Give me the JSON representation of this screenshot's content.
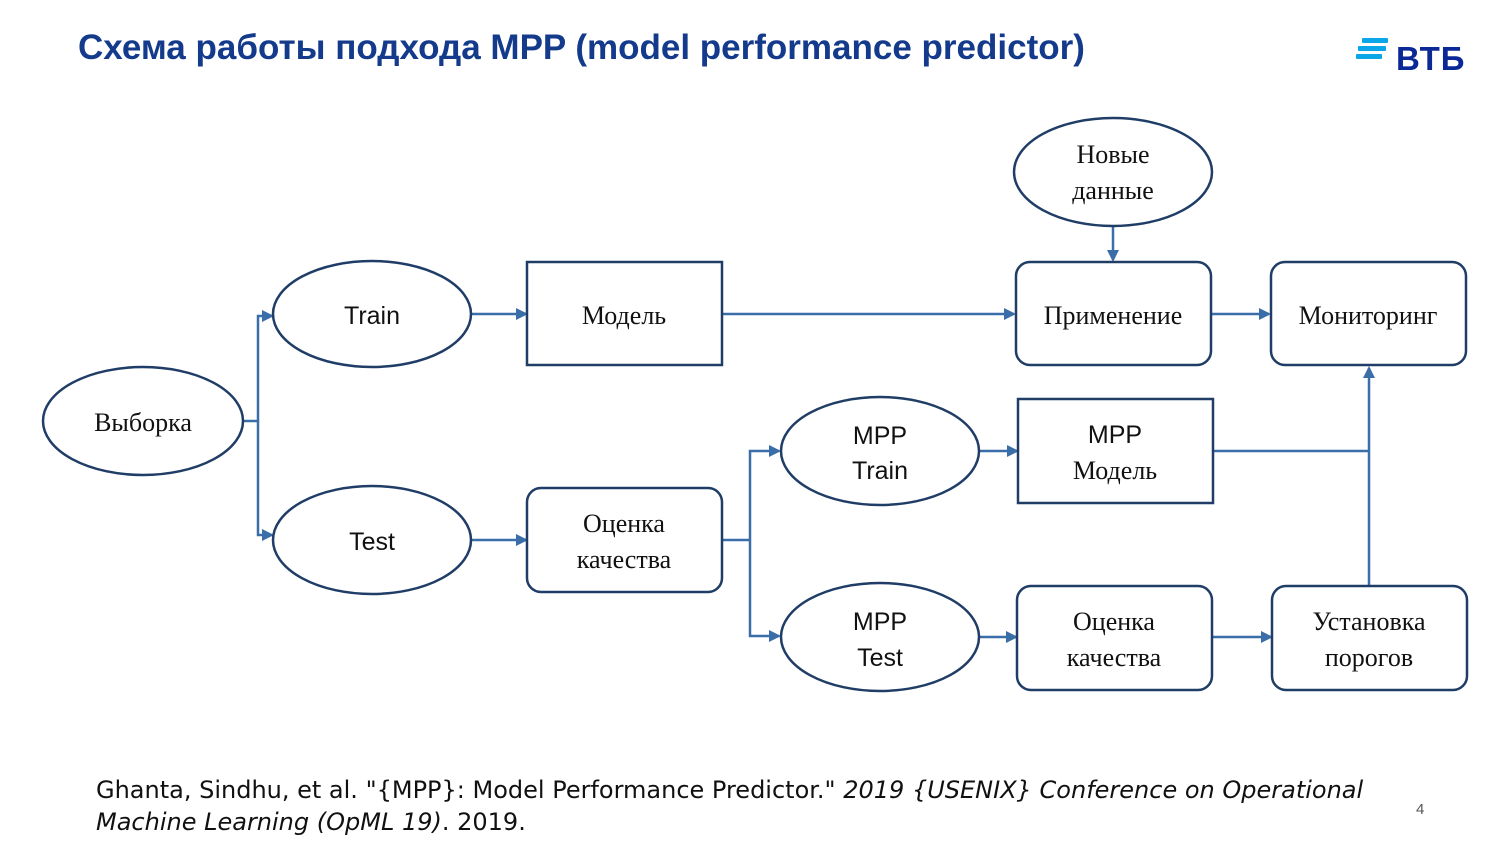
{
  "slide": {
    "title": "Схема работы подхода MPP (model performance predictor)",
    "logo_text": "ВТБ",
    "page_number": "4"
  },
  "colors": {
    "title": "#143a8c",
    "edges": "#3a6ea8",
    "node_stroke": "#1f3d66",
    "logo_text": "#0a2896",
    "logo_bars": "#0aa6e8"
  },
  "nodes": {
    "new_data": {
      "line1": "Новые",
      "line2": "данные"
    },
    "train": {
      "label": "Train"
    },
    "model": {
      "label": "Модель"
    },
    "apply": {
      "label": "Применение"
    },
    "monitoring": {
      "label": "Мониторинг"
    },
    "sample": {
      "label": "Выборка"
    },
    "test": {
      "label": "Test"
    },
    "quality_eval": {
      "line1": "Оценка",
      "line2": "качества"
    },
    "mpp_train": {
      "line1": "MPP",
      "line2": "Train"
    },
    "mpp_model": {
      "line1": "MPP",
      "line2": "Модель"
    },
    "mpp_test": {
      "line1": "MPP",
      "line2": "Test"
    },
    "mpp_quality_eval": {
      "line1": "Оценка",
      "line2": "качества"
    },
    "thresholds": {
      "line1": "Установка",
      "line2": "порогов"
    }
  },
  "citation": {
    "plain": "Ghanta, Sindhu, et al. \"{MPP}: Model Performance Predictor.\" ",
    "italic": "2019 {USENIX} Conference on Operational Machine Learning (OpML 19)",
    "tail": ". 2019."
  }
}
